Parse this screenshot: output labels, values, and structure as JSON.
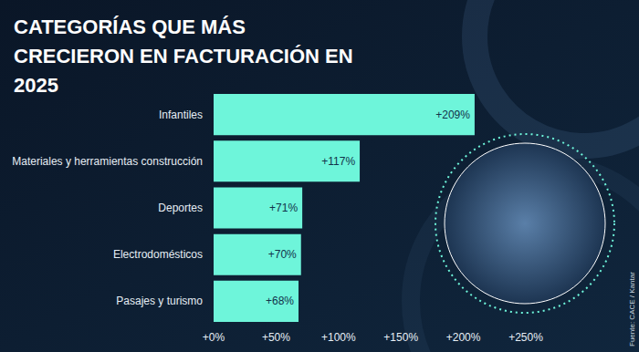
{
  "chart_data": {
    "type": "bar",
    "orientation": "horizontal",
    "title": "CATEGORÍAS QUE MÁS CRECIERON EN FACTURACIÓN EN 2025",
    "source": "Fuente: CACE / Kantar",
    "categories": [
      "Infantiles",
      "Materiales y herramientas construcción",
      "Deportes",
      "Electrodomésticos",
      "Pasajes y turismo"
    ],
    "values": [
      209,
      117,
      71,
      70,
      68
    ],
    "value_labels": [
      "+209%",
      "+117%",
      "+71%",
      "+70%",
      "+68%"
    ],
    "color": "#6ef5da",
    "xlim": [
      0,
      250
    ],
    "xticks": [
      {
        "value": 0,
        "label": "+0%"
      },
      {
        "value": 50,
        "label": "+50%"
      },
      {
        "value": 100,
        "label": "+100%"
      },
      {
        "value": 150,
        "label": "+150%"
      },
      {
        "value": 200,
        "label": "+200%"
      },
      {
        "value": 250,
        "label": "+250%"
      }
    ],
    "data_labels": true,
    "grid": false
  }
}
